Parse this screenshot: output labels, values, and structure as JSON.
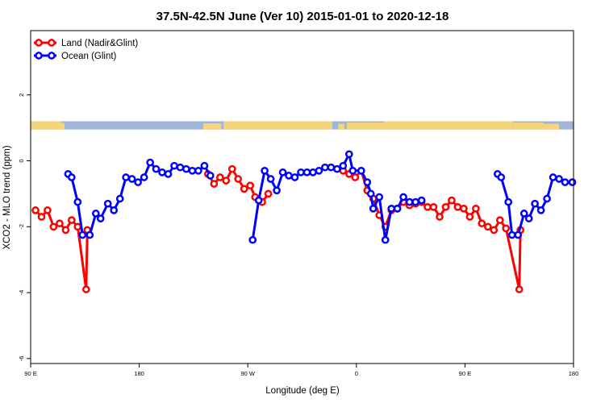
{
  "chart_data": {
    "type": "line",
    "title": "37.5N-42.5N June (Ver 10)   2015-01-01 to 2020-12-18",
    "xlabel": "Longitude (deg E)",
    "ylabel": "XCO2 - MLO trend (ppm)",
    "xlim": [
      90,
      540
    ],
    "ylim": [
      -6.15,
      3.95
    ],
    "x_ticks": [
      {
        "value": 90,
        "label": "90 E"
      },
      {
        "value": 180,
        "label": "180"
      },
      {
        "value": 270,
        "label": "90 W"
      },
      {
        "value": 360,
        "label": "0"
      },
      {
        "value": 450,
        "label": "90 E"
      },
      {
        "value": 540,
        "label": "180"
      }
    ],
    "y_ticks": [
      {
        "value": 2,
        "label": "2"
      },
      {
        "value": 0,
        "label": "0"
      },
      {
        "value": -2,
        "label": "-2"
      },
      {
        "value": -4,
        "label": "-4"
      },
      {
        "value": -6,
        "label": "-6"
      }
    ],
    "legend_position": "top-left",
    "grid": false,
    "map_strip": {
      "y_range": [
        0.95,
        1.2
      ],
      "ocean_color": "#9fb6d8",
      "land_color": "#f5d47a"
    },
    "series": [
      {
        "name": "Land (Nadir&Glint)",
        "color": "#ff0000",
        "segments": [
          [
            [
              94,
              -1.5
            ],
            [
              99,
              -1.7
            ],
            [
              104,
              -1.5
            ],
            [
              109,
              -2.0
            ],
            [
              114,
              -1.9
            ],
            [
              119,
              -2.1
            ],
            [
              124,
              -1.8
            ],
            [
              129,
              -2.0
            ],
            [
              136,
              -3.9
            ],
            [
              137,
              -2.1
            ]
          ],
          [
            [
              237,
              -0.4
            ],
            [
              242,
              -0.7
            ],
            [
              247,
              -0.5
            ],
            [
              252,
              -0.6
            ],
            [
              257,
              -0.25
            ],
            [
              262,
              -0.55
            ],
            [
              267,
              -0.85
            ],
            [
              272,
              -0.75
            ],
            [
              276,
              -1.1
            ],
            [
              282,
              -1.25
            ],
            [
              287,
              -1.0
            ]
          ],
          [
            [
              349,
              -0.3
            ],
            [
              354,
              -0.4
            ],
            [
              359,
              -0.5
            ],
            [
              364,
              -0.3
            ],
            [
              369,
              -0.9
            ],
            [
              374,
              -1.15
            ],
            [
              379,
              -1.65
            ],
            [
              384,
              -2.0
            ],
            [
              389,
              -1.5
            ],
            [
              394,
              -1.45
            ],
            [
              399,
              -1.25
            ],
            [
              404,
              -1.35
            ],
            [
              409,
              -1.3
            ],
            [
              414,
              -1.25
            ],
            [
              419,
              -1.4
            ],
            [
              424,
              -1.4
            ],
            [
              429,
              -1.7
            ],
            [
              434,
              -1.4
            ],
            [
              439,
              -1.2
            ],
            [
              444,
              -1.4
            ],
            [
              449,
              -1.45
            ],
            [
              454,
              -1.7
            ],
            [
              459,
              -1.45
            ],
            [
              464,
              -1.9
            ],
            [
              469,
              -2.0
            ],
            [
              474,
              -2.1
            ],
            [
              479,
              -1.8
            ],
            [
              484,
              -2.05
            ],
            [
              495,
              -3.9
            ],
            [
              496,
              -2.1
            ]
          ]
        ]
      },
      {
        "name": "Ocean (Glint)",
        "color": "#0000ff",
        "segments": [
          [
            [
              121,
              -0.4
            ],
            [
              124,
              -0.5
            ],
            [
              129,
              -1.25
            ],
            [
              133,
              -2.25
            ],
            [
              139,
              -2.25
            ],
            [
              144,
              -1.6
            ],
            [
              148,
              -1.75
            ],
            [
              154,
              -1.3
            ],
            [
              159,
              -1.5
            ],
            [
              164,
              -1.15
            ],
            [
              169,
              -0.5
            ],
            [
              174,
              -0.55
            ],
            [
              179,
              -0.65
            ],
            [
              184,
              -0.5
            ],
            [
              189,
              -0.05
            ],
            [
              194,
              -0.25
            ],
            [
              199,
              -0.35
            ],
            [
              204,
              -0.4
            ],
            [
              209,
              -0.15
            ],
            [
              214,
              -0.2
            ],
            [
              219,
              -0.25
            ],
            [
              224,
              -0.3
            ],
            [
              229,
              -0.3
            ],
            [
              234,
              -0.15
            ],
            [
              239,
              -0.45
            ]
          ],
          [
            [
              274,
              -2.4
            ],
            [
              279,
              -1.2
            ],
            [
              284,
              -0.3
            ],
            [
              289,
              -0.55
            ],
            [
              294,
              -0.9
            ],
            [
              299,
              -0.35
            ],
            [
              304,
              -0.45
            ],
            [
              309,
              -0.5
            ],
            [
              314,
              -0.35
            ],
            [
              319,
              -0.35
            ],
            [
              324,
              -0.35
            ],
            [
              329,
              -0.3
            ],
            [
              334,
              -0.2
            ],
            [
              339,
              -0.2
            ],
            [
              344,
              -0.25
            ],
            [
              349,
              -0.15
            ],
            [
              354,
              0.2
            ],
            [
              357,
              -0.3
            ],
            [
              364,
              -0.3
            ],
            [
              369,
              -0.65
            ],
            [
              372,
              -1.0
            ],
            [
              374,
              -1.45
            ],
            [
              379,
              -1.1
            ],
            [
              384,
              -2.4
            ],
            [
              389,
              -1.45
            ],
            [
              394,
              -1.45
            ],
            [
              399,
              -1.1
            ],
            [
              404,
              -1.25
            ],
            [
              409,
              -1.25
            ],
            [
              414,
              -1.2
            ]
          ],
          [
            [
              477,
              -0.4
            ],
            [
              480,
              -0.5
            ],
            [
              486,
              -1.25
            ],
            [
              489,
              -2.25
            ],
            [
              494,
              -2.25
            ],
            [
              499,
              -1.6
            ],
            [
              503,
              -1.75
            ],
            [
              508,
              -1.3
            ],
            [
              513,
              -1.5
            ],
            [
              518,
              -1.15
            ],
            [
              523,
              -0.5
            ],
            [
              528,
              -0.55
            ],
            [
              533,
              -0.65
            ],
            [
              539,
              -0.65
            ]
          ]
        ]
      }
    ]
  }
}
